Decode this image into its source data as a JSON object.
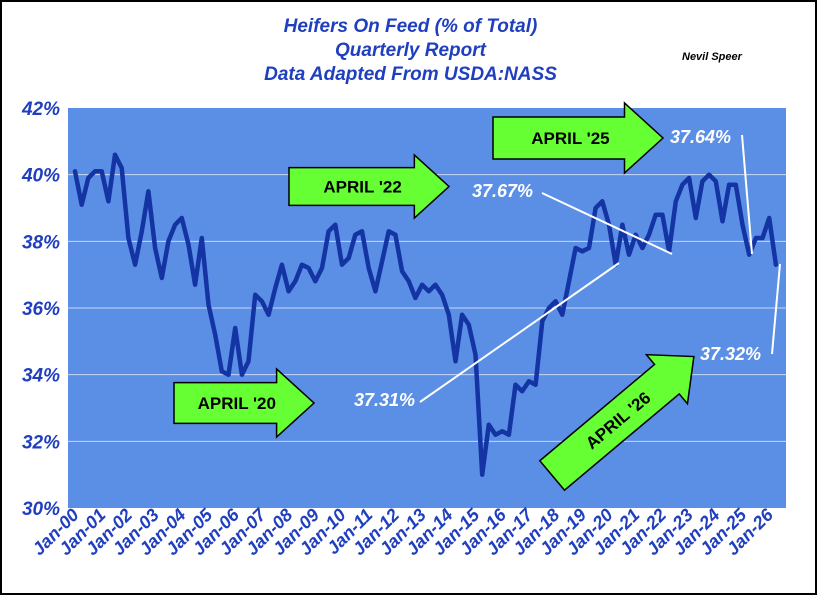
{
  "chart_data": {
    "type": "line",
    "title": [
      "Heifers On Feed (% of Total)",
      "Quarterly Report",
      "Data Adapted From USDA:NASS"
    ],
    "author": "Nevil Speer",
    "ylim": [
      30,
      42
    ],
    "y_ticks": [
      "30%",
      "32%",
      "34%",
      "36%",
      "38%",
      "40%",
      "42%"
    ],
    "x_ticks": [
      "Jan-00",
      "Jan-01",
      "Jan-02",
      "Jan-03",
      "Jan-04",
      "Jan-05",
      "Jan-06",
      "Jan-07",
      "Jan-08",
      "Jan-09",
      "Jan-10",
      "Jan-11",
      "Jan-12",
      "Jan-13",
      "Jan-14",
      "Jan-15",
      "Jan-16",
      "Jan-17",
      "Jan-18",
      "Jan-19",
      "Jan-20",
      "Jan-21",
      "Jan-22",
      "Jan-23",
      "Jan-24",
      "Jan-25",
      "Jan-26"
    ],
    "grid": true,
    "colors": {
      "plot_bg": "#5b8fe6",
      "line": "#1434a4",
      "arrow": "#66ff33",
      "title": "#1f3fbf",
      "tick_label": "#1f3fbf"
    },
    "series": [
      {
        "values": [
          40.1,
          39.1,
          39.9,
          40.1,
          40.1,
          39.2,
          40.6,
          40.2,
          38.1,
          37.3,
          38.3,
          39.5,
          37.8,
          36.9,
          38.0,
          38.5,
          38.7,
          37.9,
          36.7,
          38.1,
          36.1,
          35.2,
          34.1,
          34.0,
          35.4,
          34.0,
          34.4,
          36.4,
          36.2,
          35.8,
          36.6,
          37.3,
          36.5,
          36.8,
          37.3,
          37.2,
          36.8,
          37.2,
          38.3,
          38.5,
          37.3,
          37.5,
          38.2,
          38.3,
          37.2,
          36.5,
          37.4,
          38.3,
          38.2,
          37.1,
          36.8,
          36.3,
          36.7,
          36.5,
          36.7,
          36.4,
          35.8,
          34.4,
          35.8,
          35.5,
          34.6,
          31.0,
          32.5,
          32.2,
          32.3,
          32.2,
          33.7,
          33.5,
          33.8,
          33.7,
          35.6,
          36.0,
          36.2,
          35.8,
          36.8,
          37.8,
          37.7,
          37.8,
          39.0,
          39.2,
          38.5,
          37.3,
          38.5,
          37.6,
          38.2,
          37.8,
          38.2,
          38.8,
          38.8,
          37.7,
          39.2,
          39.7,
          39.9,
          38.7,
          39.8,
          40.0,
          39.8,
          38.6,
          39.7,
          39.7,
          38.5,
          37.6,
          38.1,
          38.1,
          38.7,
          37.3
        ]
      }
    ],
    "annotations": [
      {
        "label": "APRIL '20",
        "value": "37.31%"
      },
      {
        "label": "APRIL '22",
        "value": "37.67%"
      },
      {
        "label": "APRIL '25",
        "value": "37.64%"
      },
      {
        "label": "APRIL '26",
        "value": "37.32%"
      }
    ]
  }
}
